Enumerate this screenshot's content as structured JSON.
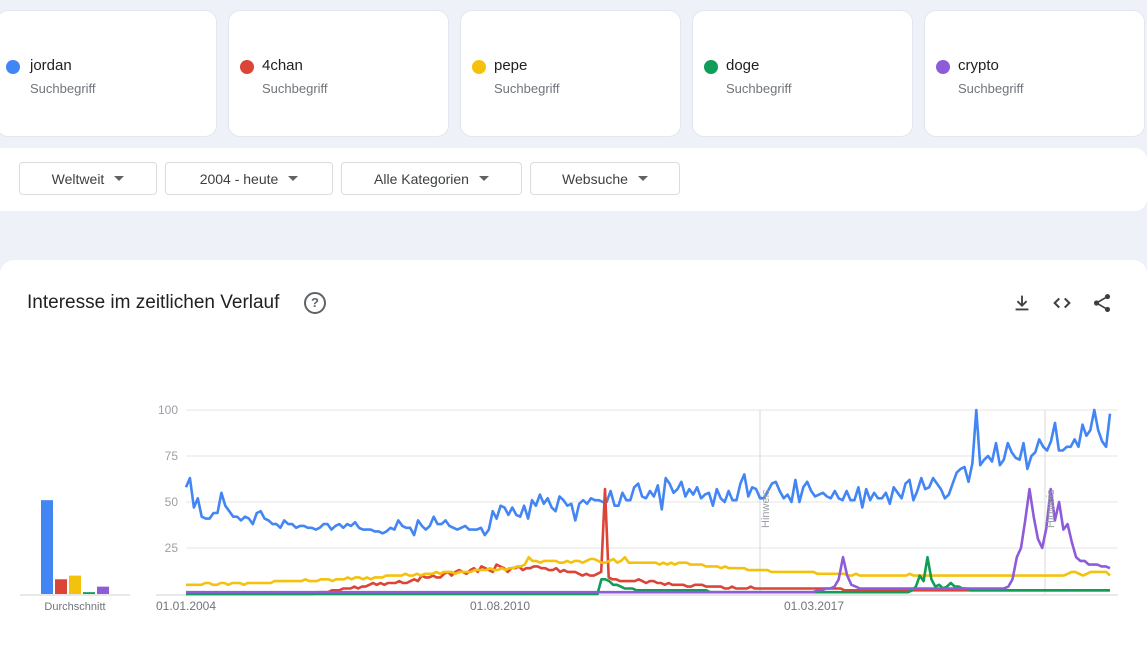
{
  "terms": [
    {
      "name": "jordan",
      "type": "Suchbegriff",
      "color": "#4285f4"
    },
    {
      "name": "4chan",
      "type": "Suchbegriff",
      "color": "#db4437"
    },
    {
      "name": "pepe",
      "type": "Suchbegriff",
      "color": "#f4c20d"
    },
    {
      "name": "doge",
      "type": "Suchbegriff",
      "color": "#0f9d58"
    },
    {
      "name": "crypto",
      "type": "Suchbegriff",
      "color": "#8e5cd9"
    }
  ],
  "filters": [
    {
      "label": "Weltweit"
    },
    {
      "label": "2004 - heute"
    },
    {
      "label": "Alle Kategorien"
    },
    {
      "label": "Websuche"
    }
  ],
  "panel": {
    "title": "Interesse im zeitlichen Verlauf",
    "help": "?",
    "icons": [
      "download-icon",
      "embed-icon",
      "share-icon"
    ]
  },
  "chart_data": {
    "type": "line",
    "x_tick_labels": [
      "01.01.2004",
      "01.08.2010",
      "01.03.2017"
    ],
    "y_ticks": [
      25,
      50,
      75,
      100
    ],
    "ylim": [
      0,
      100
    ],
    "notes": [
      "Hinweis",
      "Hinweis"
    ],
    "average_label": "Durchschnitt",
    "averages": [
      {
        "name": "jordan",
        "value": 51
      },
      {
        "name": "4chan",
        "value": 8
      },
      {
        "name": "pepe",
        "value": 10
      },
      {
        "name": "doge",
        "value": 1
      },
      {
        "name": "crypto",
        "value": 4
      }
    ],
    "series": [
      {
        "name": "jordan",
        "color": "#4285f4",
        "values": [
          58,
          63,
          47,
          52,
          42,
          41,
          41,
          44,
          44,
          55,
          48,
          45,
          42,
          42,
          40,
          42,
          41,
          38,
          44,
          45,
          41,
          40,
          38,
          38,
          36,
          40,
          38,
          38,
          36,
          37,
          37,
          36,
          36,
          35,
          36,
          38,
          38,
          35,
          37,
          38,
          36,
          38,
          37,
          39,
          36,
          35,
          35,
          35,
          34,
          34,
          33,
          34,
          36,
          35,
          40,
          37,
          36,
          36,
          32,
          40,
          37,
          35,
          37,
          42,
          38,
          38,
          40,
          37,
          36,
          35,
          36,
          37,
          35,
          35,
          35,
          36,
          32,
          35,
          45,
          41,
          48,
          47,
          43,
          47,
          43,
          42,
          48,
          41,
          51,
          48,
          54,
          49,
          52,
          47,
          45,
          53,
          51,
          48,
          49,
          40,
          49,
          51,
          49,
          52,
          51,
          51,
          50,
          50,
          56,
          48,
          48,
          55,
          51,
          51,
          58,
          60,
          53,
          52,
          56,
          53,
          59,
          46,
          63,
          60,
          55,
          57,
          61,
          53,
          57,
          54,
          58,
          52,
          54,
          55,
          48,
          57,
          52,
          50,
          56,
          51,
          51,
          60,
          65,
          53,
          58,
          57,
          52,
          52,
          56,
          60,
          61,
          56,
          52,
          54,
          50,
          62,
          50,
          58,
          61,
          56,
          53,
          54,
          55,
          53,
          52,
          56,
          52,
          51,
          56,
          51,
          51,
          58,
          47,
          57,
          51,
          55,
          52,
          52,
          55,
          49,
          58,
          55,
          52,
          60,
          62,
          51,
          56,
          63,
          57,
          58,
          63,
          60,
          57,
          52,
          54,
          60,
          66,
          68,
          69,
          61,
          71,
          100,
          70,
          73,
          75,
          72,
          82,
          70,
          73,
          82,
          77,
          74,
          73,
          82,
          68,
          75,
          77,
          84,
          80,
          78,
          83,
          93,
          78,
          78,
          80,
          80,
          84,
          80,
          92,
          86,
          89,
          100,
          89,
          83,
          80,
          98
        ]
      },
      {
        "name": "4chan",
        "color": "#db4437",
        "values": [
          0,
          0,
          0,
          0,
          0,
          0,
          0,
          0,
          0,
          0,
          0,
          0,
          0,
          0,
          0,
          0,
          0,
          0,
          0,
          0,
          0,
          0,
          0,
          0,
          0,
          0,
          0,
          0,
          0,
          0,
          0,
          0,
          0,
          0,
          0,
          1,
          1,
          1,
          1,
          2,
          2,
          2,
          3,
          3,
          3,
          4,
          3,
          4,
          4,
          5,
          6,
          5,
          6,
          5,
          6,
          6,
          6,
          7,
          6,
          6,
          7,
          8,
          7,
          10,
          9,
          9,
          10,
          9,
          9,
          11,
          12,
          10,
          12,
          13,
          12,
          11,
          13,
          14,
          12,
          15,
          14,
          13,
          12,
          16,
          15,
          14,
          12,
          14,
          14,
          15,
          13,
          14,
          14,
          15,
          15,
          14,
          14,
          13,
          13,
          14,
          12,
          13,
          12,
          12,
          12,
          11,
          10,
          11,
          10,
          10,
          11,
          12,
          57,
          9,
          8,
          8,
          7,
          7,
          7,
          7,
          7,
          8,
          7,
          6,
          7,
          7,
          6,
          6,
          5,
          6,
          5,
          5,
          5,
          5,
          4,
          4,
          5,
          5,
          5,
          4,
          4,
          4,
          4,
          4,
          3,
          3,
          4,
          3,
          3,
          3,
          3,
          4,
          3,
          3,
          3,
          3,
          3,
          3,
          3,
          3,
          3,
          3,
          3,
          3,
          3,
          3,
          3,
          3,
          3,
          3,
          3,
          3,
          3,
          3,
          3,
          3,
          2,
          2,
          2,
          2,
          2,
          2,
          2,
          2,
          2,
          2,
          2,
          2,
          2,
          2,
          2,
          2,
          2,
          2,
          2,
          2,
          2,
          2,
          2,
          2,
          2,
          2,
          2,
          2,
          2,
          2,
          2,
          2,
          2,
          2,
          2,
          2,
          2,
          2,
          2,
          2,
          2,
          2,
          2,
          2,
          2,
          2,
          2,
          2,
          2,
          2,
          2,
          2,
          2,
          2,
          2,
          2,
          2,
          2,
          2,
          2,
          2,
          2,
          2,
          2,
          2,
          2,
          2,
          2,
          2,
          2,
          2,
          2
        ]
      },
      {
        "name": "pepe",
        "color": "#f4c20d",
        "values": [
          5,
          5,
          5,
          5,
          5,
          6,
          6,
          5,
          5,
          6,
          6,
          5,
          6,
          6,
          6,
          5,
          6,
          6,
          6,
          6,
          6,
          6,
          6,
          7,
          7,
          7,
          7,
          7,
          7,
          7,
          7,
          8,
          7,
          7,
          7,
          8,
          8,
          8,
          7,
          8,
          8,
          8,
          9,
          8,
          9,
          9,
          8,
          9,
          8,
          9,
          9,
          9,
          10,
          10,
          10,
          10,
          10,
          11,
          10,
          10,
          11,
          10,
          11,
          11,
          11,
          12,
          11,
          12,
          12,
          12,
          11,
          12,
          12,
          12,
          12,
          13,
          13,
          13,
          13,
          14,
          13,
          13,
          14,
          13,
          14,
          14,
          15,
          15,
          16,
          20,
          18,
          18,
          17,
          18,
          18,
          18,
          18,
          17,
          17,
          18,
          17,
          18,
          18,
          17,
          18,
          19,
          19,
          18,
          17,
          17,
          18,
          19,
          17,
          18,
          20,
          17,
          17,
          17,
          17,
          17,
          17,
          17,
          17,
          16,
          17,
          16,
          17,
          16,
          17,
          17,
          17,
          16,
          16,
          16,
          16,
          15,
          15,
          15,
          15,
          14,
          15,
          14,
          14,
          14,
          14,
          14,
          13,
          13,
          13,
          13,
          13,
          13,
          12,
          12,
          12,
          12,
          12,
          12,
          12,
          12,
          12,
          12,
          12,
          12,
          11,
          11,
          11,
          11,
          11,
          11,
          11,
          11,
          10,
          10,
          11,
          10,
          10,
          10,
          10,
          10,
          10,
          10,
          10,
          10,
          10,
          10,
          10,
          10,
          11,
          10,
          10,
          10,
          10,
          10,
          10,
          10,
          10,
          10,
          10,
          10,
          10,
          10,
          10,
          10,
          10,
          10,
          10,
          10,
          10,
          10,
          10,
          10,
          10,
          10,
          10,
          10,
          10,
          10,
          10,
          10,
          10,
          10,
          10,
          10,
          10,
          10,
          10,
          10,
          10,
          11,
          12,
          12,
          11,
          10,
          11,
          12,
          12,
          12,
          12,
          12,
          10
        ]
      },
      {
        "name": "doge",
        "color": "#0f9d58",
        "values": [
          0,
          0,
          0,
          0,
          0,
          0,
          0,
          0,
          0,
          0,
          0,
          0,
          0,
          0,
          0,
          0,
          0,
          0,
          0,
          0,
          0,
          0,
          0,
          0,
          0,
          0,
          0,
          0,
          0,
          0,
          0,
          0,
          0,
          0,
          0,
          0,
          0,
          0,
          0,
          0,
          0,
          0,
          0,
          0,
          0,
          0,
          0,
          0,
          0,
          0,
          0,
          0,
          0,
          0,
          0,
          0,
          0,
          0,
          0,
          0,
          0,
          0,
          0,
          0,
          0,
          0,
          0,
          0,
          0,
          0,
          0,
          0,
          0,
          0,
          0,
          0,
          0,
          0,
          0,
          0,
          0,
          0,
          0,
          0,
          0,
          0,
          0,
          0,
          0,
          0,
          0,
          0,
          0,
          0,
          0,
          0,
          0,
          0,
          0,
          0,
          0,
          0,
          0,
          0,
          0,
          0,
          0,
          8,
          8,
          7,
          5,
          5,
          4,
          3,
          3,
          3,
          2,
          2,
          2,
          2,
          2,
          2,
          2,
          2,
          2,
          2,
          2,
          2,
          2,
          2,
          2,
          2,
          2,
          2,
          2,
          1,
          1,
          1,
          1,
          1,
          1,
          1,
          1,
          1,
          1,
          1,
          1,
          1,
          1,
          1,
          1,
          1,
          1,
          1,
          1,
          1,
          1,
          1,
          1,
          1,
          1,
          1,
          1,
          1,
          1,
          1,
          1,
          1,
          1,
          1,
          1,
          1,
          1,
          1,
          1,
          1,
          1,
          1,
          1,
          1,
          1,
          1,
          1,
          1,
          1,
          1,
          1,
          2,
          4,
          10,
          7,
          20,
          8,
          4,
          5,
          3,
          4,
          6,
          4,
          4,
          3,
          3,
          2,
          2,
          2,
          2,
          2,
          2,
          2,
          2,
          2,
          2,
          2,
          2,
          2,
          2,
          2,
          2,
          2,
          2,
          2,
          2,
          2,
          2,
          2,
          2,
          2,
          2,
          2,
          2,
          2,
          2,
          2,
          2,
          2,
          2,
          2,
          2,
          2
        ]
      },
      {
        "name": "crypto",
        "color": "#8e5cd9",
        "values": [
          1,
          1,
          1,
          1,
          1,
          1,
          1,
          1,
          1,
          1,
          1,
          1,
          1,
          1,
          1,
          1,
          1,
          1,
          1,
          1,
          1,
          1,
          1,
          1,
          1,
          1,
          1,
          1,
          1,
          1,
          1,
          1,
          1,
          1,
          1,
          1,
          1,
          1,
          1,
          1,
          1,
          1,
          1,
          1,
          1,
          1,
          1,
          1,
          1,
          1,
          1,
          1,
          1,
          1,
          1,
          1,
          1,
          1,
          1,
          1,
          1,
          1,
          1,
          1,
          1,
          1,
          1,
          1,
          1,
          1,
          1,
          1,
          1,
          1,
          1,
          1,
          1,
          1,
          1,
          1,
          1,
          1,
          1,
          1,
          1,
          1,
          1,
          1,
          1,
          1,
          1,
          1,
          1,
          1,
          1,
          1,
          1,
          1,
          1,
          1,
          1,
          1,
          1,
          1,
          1,
          1,
          1,
          1,
          1,
          1,
          1,
          1,
          1,
          1,
          1,
          1,
          1,
          1,
          1,
          1,
          1,
          1,
          1,
          1,
          1,
          1,
          1,
          1,
          1,
          1,
          1,
          1,
          1,
          1,
          1,
          1,
          1,
          1,
          1,
          1,
          1,
          1,
          1,
          1,
          1,
          1,
          1,
          1,
          1,
          2,
          2,
          3,
          3,
          4,
          8,
          20,
          10,
          5,
          4,
          3,
          3,
          3,
          3,
          3,
          3,
          3,
          3,
          3,
          3,
          3,
          3,
          3,
          3,
          3,
          3,
          3,
          3,
          3,
          3,
          3,
          3,
          3,
          3,
          3,
          3,
          3,
          3,
          3,
          3,
          3,
          3,
          3,
          3,
          3,
          4,
          8,
          20,
          25,
          40,
          57,
          42,
          30,
          25,
          36,
          57,
          40,
          50,
          35,
          38,
          28,
          20,
          18,
          18,
          16,
          16,
          16,
          15,
          15,
          14
        ]
      }
    ]
  }
}
